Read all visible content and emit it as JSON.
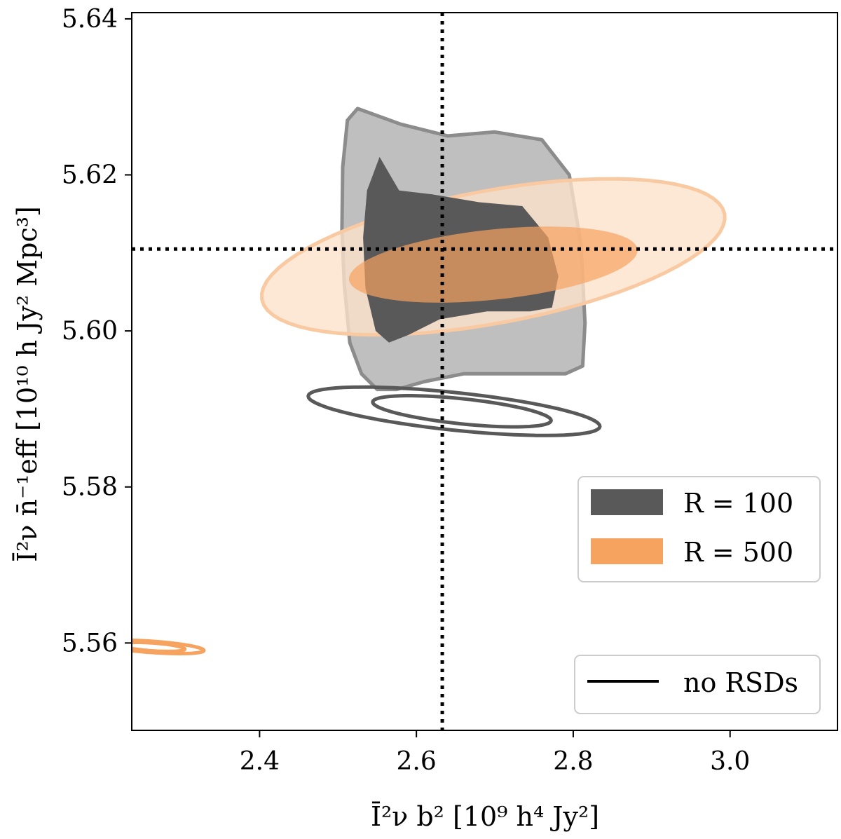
{
  "chart_data": {
    "type": "contour",
    "xlabel": "Ī²ν b²  [10⁹ h⁴ Jy²]",
    "ylabel": "Ī²ν n̄⁻¹eff  [10¹⁰ h Jy² Mpc³]",
    "xlim": [
      2.237,
      3.137
    ],
    "ylim": [
      5.5488,
      5.6408
    ],
    "xticks": [
      2.4,
      2.6,
      2.8,
      3.0
    ],
    "xtick_labels": [
      "2.4",
      "2.6",
      "2.8",
      "3.0"
    ],
    "yticks": [
      5.56,
      5.58,
      5.6,
      5.62,
      5.64
    ],
    "ytick_labels": [
      "5.56",
      "5.58",
      "5.60",
      "5.62",
      "5.64"
    ],
    "fiducial": {
      "x": 2.633,
      "y": 5.6105
    },
    "colors": {
      "R100_inner": "#595959",
      "R100_outer": "#bfbfbf",
      "R100_edge": "#8c8c8c",
      "R500_inner": "#f6a35f",
      "R500_outer": "#fde1cb",
      "R500_edge": "#f9c9a1",
      "nors_R100": "#595959",
      "nors_R500": "#f6a35f"
    },
    "series": [
      {
        "name": "R = 100",
        "filled": true,
        "contours": {
          "outer": [
            [
              2.525,
              5.6285
            ],
            [
              2.58,
              5.6265
            ],
            [
              2.64,
              5.625
            ],
            [
              2.7,
              5.6255
            ],
            [
              2.76,
              5.6245
            ],
            [
              2.795,
              5.62
            ],
            [
              2.81,
              5.611
            ],
            [
              2.815,
              5.601
            ],
            [
              2.812,
              5.5955
            ],
            [
              2.79,
              5.5945
            ],
            [
              2.73,
              5.5945
            ],
            [
              2.66,
              5.5945
            ],
            [
              2.61,
              5.5935
            ],
            [
              2.575,
              5.5925
            ],
            [
              2.55,
              5.5925
            ],
            [
              2.53,
              5.5945
            ],
            [
              2.515,
              5.5985
            ],
            [
              2.508,
              5.606
            ],
            [
              2.505,
              5.613
            ],
            [
              2.506,
              5.621
            ],
            [
              2.512,
              5.627
            ]
          ],
          "inner": [
            [
              2.553,
              5.6223
            ],
            [
              2.578,
              5.618
            ],
            [
              2.62,
              5.6175
            ],
            [
              2.68,
              5.6165
            ],
            [
              2.735,
              5.616
            ],
            [
              2.768,
              5.612
            ],
            [
              2.781,
              5.607
            ],
            [
              2.773,
              5.603
            ],
            [
              2.745,
              5.6025
            ],
            [
              2.69,
              5.6025
            ],
            [
              2.63,
              5.6015
            ],
            [
              2.59,
              5.5995
            ],
            [
              2.565,
              5.5985
            ],
            [
              2.548,
              5.6
            ],
            [
              2.535,
              5.6055
            ],
            [
              2.532,
              5.612
            ],
            [
              2.537,
              5.618
            ]
          ]
        }
      },
      {
        "name": "R = 500",
        "filled": true,
        "ellipses": [
          {
            "level": "outer",
            "cx": 2.698,
            "cy": 5.6095,
            "sx": 0.3,
            "sy": 0.0085,
            "rotation_deg": -10.5
          },
          {
            "level": "inner",
            "cx": 2.698,
            "cy": 5.6085,
            "sx": 0.185,
            "sy": 0.0045,
            "rotation_deg": -6.0
          }
        ]
      },
      {
        "name": "no RSDs (R = 100)",
        "filled": false,
        "ellipses": [
          {
            "level": "outer",
            "cx": 2.648,
            "cy": 5.5897,
            "sx": 0.024,
            "sy": 0.0188,
            "rotation_deg": -84.0
          },
          {
            "level": "inner",
            "cx": 2.658,
            "cy": 5.5897,
            "sx": 0.016,
            "sy": 0.0115,
            "rotation_deg": -84.0
          }
        ]
      },
      {
        "name": "no RSDs (R = 500)",
        "filled": false,
        "ellipses": [
          {
            "level": "outer",
            "cx": 2.2625,
            "cy": 5.5595,
            "sx": 0.0072,
            "sy": 0.0067,
            "rotation_deg": -86.0
          },
          {
            "level": "inner",
            "cx": 2.263,
            "cy": 5.5595,
            "sx": 0.005,
            "sy": 0.0042,
            "rotation_deg": -86.0
          }
        ]
      }
    ],
    "legend": {
      "position": "right",
      "entries": [
        {
          "label": "R = 100",
          "symbol": "patch",
          "color_key": "R100_inner"
        },
        {
          "label": "R = 500",
          "symbol": "patch",
          "color_key": "R500_inner"
        }
      ]
    },
    "legend2": {
      "position": "bottom-right",
      "entries": [
        {
          "label": "no RSDs",
          "symbol": "line",
          "color_key": "nors_R100"
        }
      ]
    }
  }
}
